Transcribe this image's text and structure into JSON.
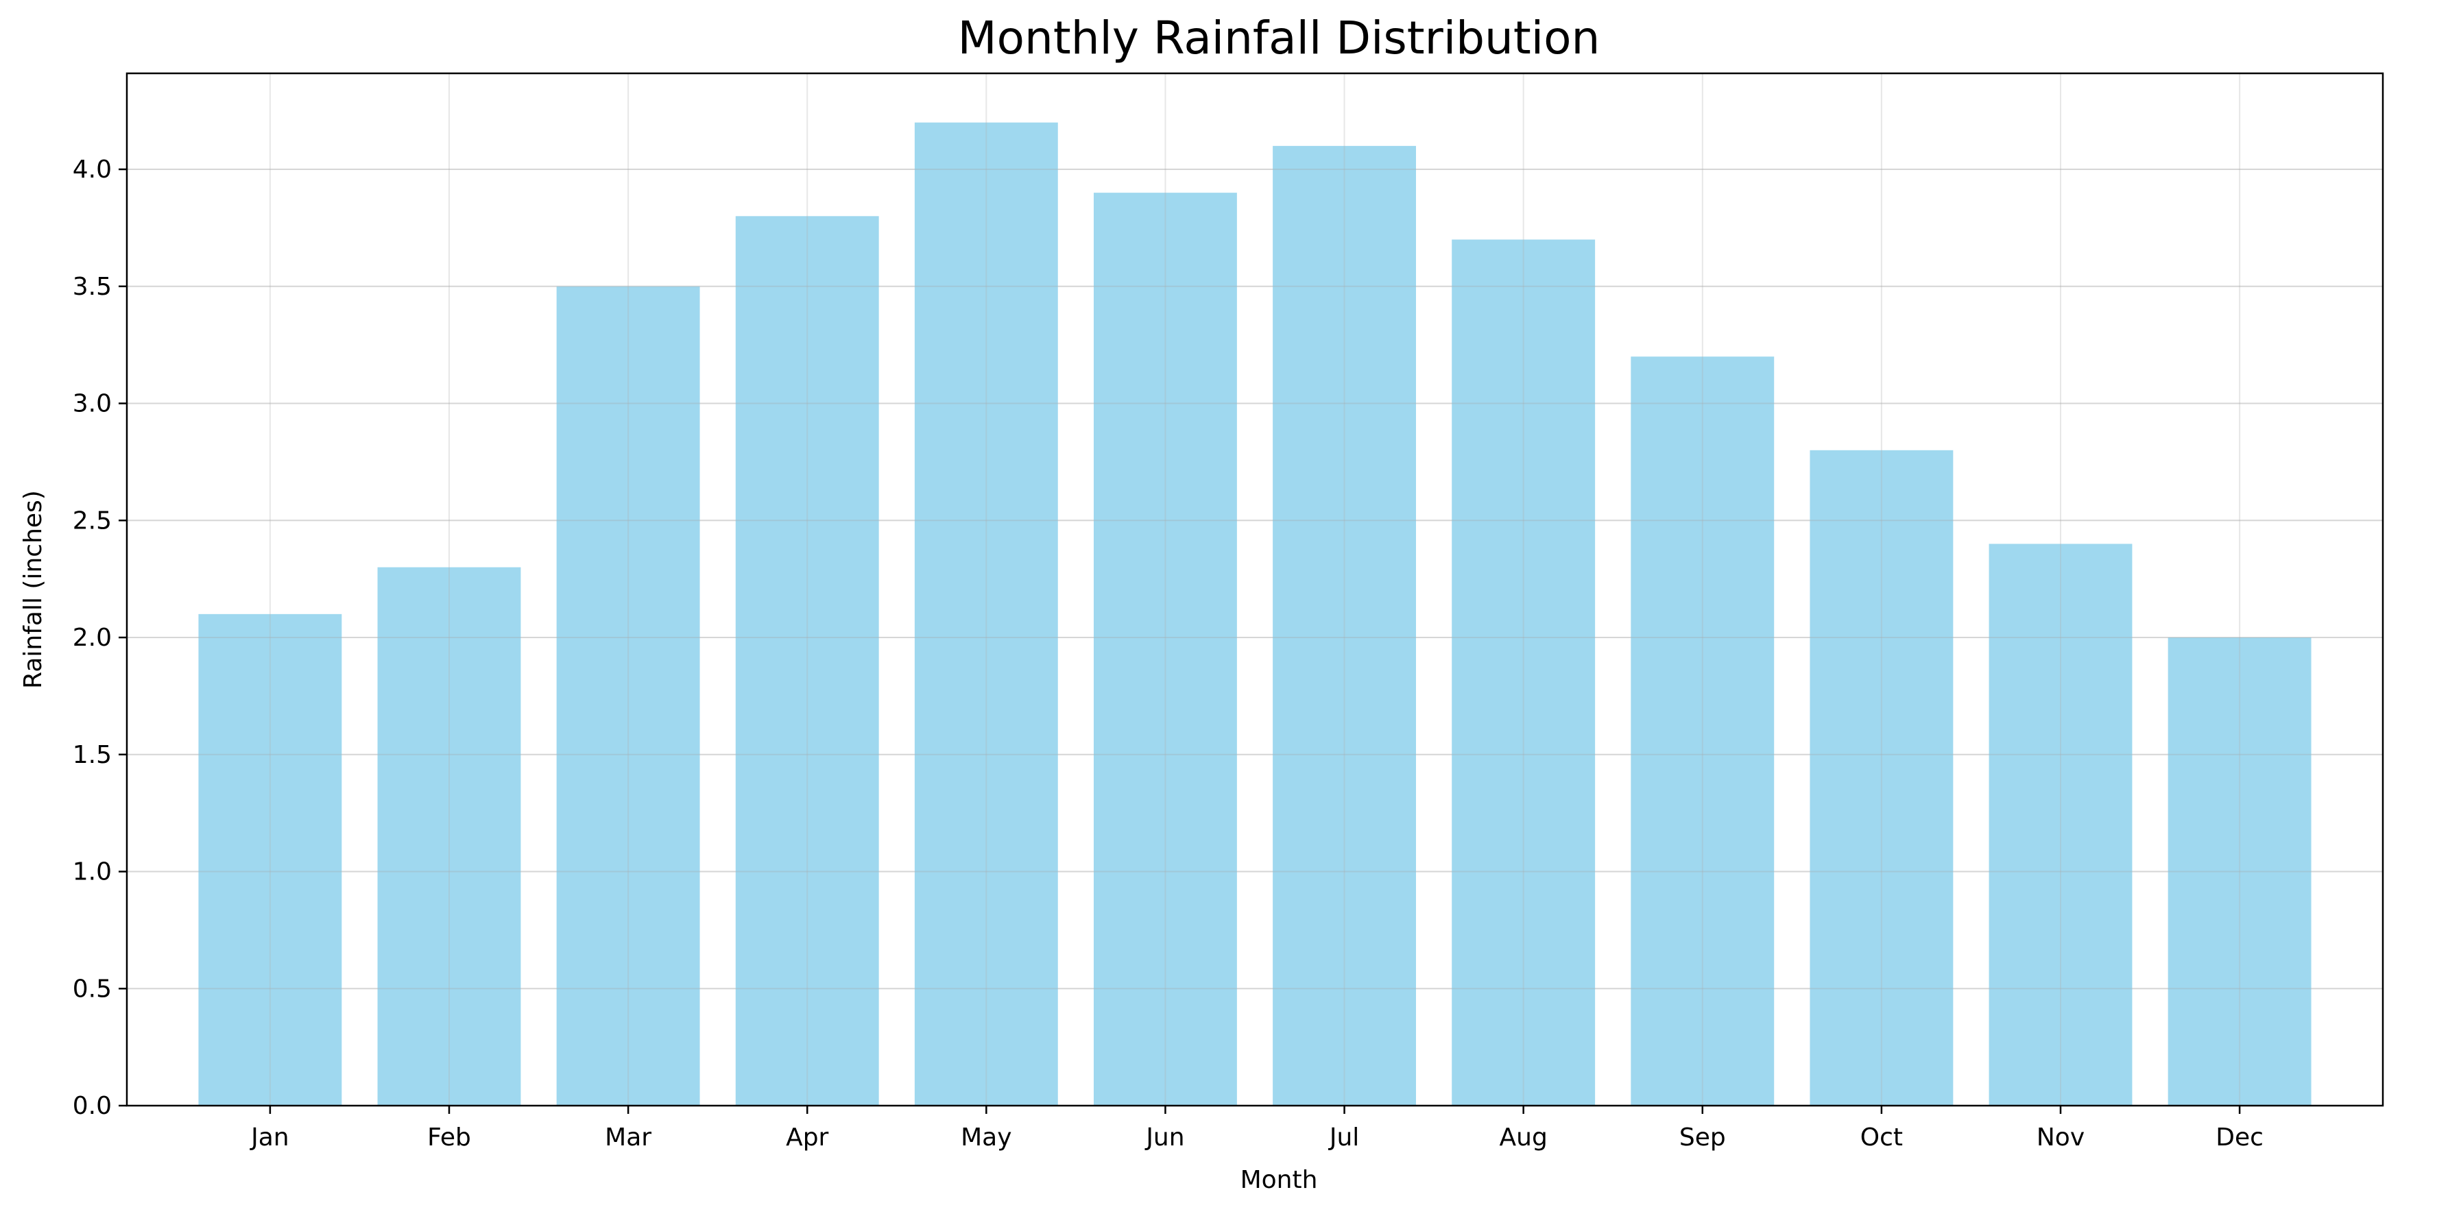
{
  "chart_data": {
    "type": "bar",
    "title": "Monthly Rainfall Distribution",
    "xlabel": "Month",
    "ylabel": "Rainfall (inches)",
    "categories": [
      "Jan",
      "Feb",
      "Mar",
      "Apr",
      "May",
      "Jun",
      "Jul",
      "Aug",
      "Sep",
      "Oct",
      "Nov",
      "Dec"
    ],
    "values": [
      2.1,
      2.3,
      3.5,
      3.8,
      4.2,
      3.9,
      4.1,
      3.7,
      3.2,
      2.8,
      2.4,
      2.0
    ],
    "ylim": [
      0,
      4.41
    ],
    "yticks": [
      "0.0",
      "0.5",
      "1.0",
      "1.5",
      "2.0",
      "2.5",
      "3.0",
      "3.5",
      "4.0"
    ],
    "grid": true,
    "legend": "none",
    "bar_color": "#87ceeb",
    "grid_color": "#b0b0b0"
  }
}
